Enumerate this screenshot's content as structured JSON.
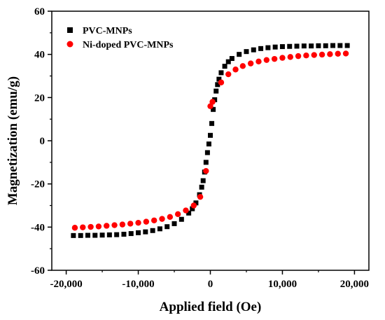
{
  "chart_data": {
    "type": "scatter",
    "title": "",
    "xlabel": "Applied field (Oe)",
    "ylabel": "Magnetization (emu/g)",
    "xlim": [
      -22000,
      22000
    ],
    "ylim": [
      -60,
      60
    ],
    "grid": false,
    "legend_position": "top-left",
    "x_ticks": [
      -20000,
      -10000,
      0,
      10000,
      20000
    ],
    "x_tick_labels": [
      "-20,000",
      "-10,000",
      "0",
      "10,000",
      "20,000"
    ],
    "y_ticks": [
      -60,
      -40,
      -20,
      0,
      20,
      40,
      60
    ],
    "y_tick_labels": [
      "-60",
      "-40",
      "-20",
      "0",
      "20",
      "40",
      "60"
    ],
    "series": [
      {
        "name": "PVC-MNPs",
        "marker": "square",
        "color": "#000000",
        "x": [
          -19000,
          -18000,
          -17000,
          -16000,
          -15000,
          -14000,
          -13000,
          -12000,
          -11000,
          -10000,
          -9000,
          -8000,
          -7000,
          -6000,
          -5000,
          -4000,
          -3000,
          -2500,
          -2000,
          -1500,
          -1200,
          -1000,
          -800,
          -600,
          -400,
          -200,
          0,
          200,
          400,
          600,
          800,
          1000,
          1200,
          1500,
          2000,
          2500,
          3000,
          4000,
          5000,
          6000,
          7000,
          8000,
          9000,
          10000,
          11000,
          12000,
          13000,
          14000,
          15000,
          16000,
          17000,
          18000,
          19000
        ],
        "y": [
          -43.9,
          -43.9,
          -43.8,
          -43.8,
          -43.7,
          -43.6,
          -43.5,
          -43.3,
          -43.0,
          -42.6,
          -42.2,
          -41.6,
          -40.8,
          -39.8,
          -38.4,
          -36.4,
          -33.5,
          -31.5,
          -28.8,
          -25.0,
          -21.5,
          -18.5,
          -14.5,
          -10.0,
          -5.5,
          -1.5,
          2.5,
          8.0,
          14.5,
          19.0,
          23.0,
          26.0,
          28.5,
          31.5,
          34.5,
          36.6,
          38.1,
          40.0,
          41.3,
          42.1,
          42.7,
          43.1,
          43.4,
          43.6,
          43.7,
          43.8,
          43.9,
          43.9,
          44.0,
          44.0,
          44.1,
          44.1,
          44.1
        ]
      },
      {
        "name": "Ni-doped PVC-MNPs",
        "marker": "circle",
        "color": "#ff0000",
        "x": [
          -18800,
          -17700,
          -16600,
          -15500,
          -14400,
          -13300,
          -12200,
          -11100,
          -10000,
          -8900,
          -7800,
          -6700,
          -5600,
          -4500,
          -3400,
          -2300,
          -1400,
          -600,
          0,
          300,
          1500,
          2500,
          3500,
          4500,
          5600,
          6700,
          7800,
          8900,
          10000,
          11100,
          12200,
          13300,
          14400,
          15500,
          16600,
          17700,
          18800
        ],
        "y": [
          -40.3,
          -40.1,
          -39.9,
          -39.7,
          -39.4,
          -39.1,
          -38.8,
          -38.4,
          -38.0,
          -37.5,
          -36.9,
          -36.2,
          -35.3,
          -34.0,
          -32.3,
          -30.0,
          -26.0,
          -14.0,
          16.0,
          18.0,
          27.0,
          30.8,
          33.0,
          34.6,
          35.8,
          36.7,
          37.4,
          37.9,
          38.4,
          38.8,
          39.2,
          39.5,
          39.7,
          39.9,
          40.1,
          40.3,
          40.4
        ]
      }
    ]
  }
}
